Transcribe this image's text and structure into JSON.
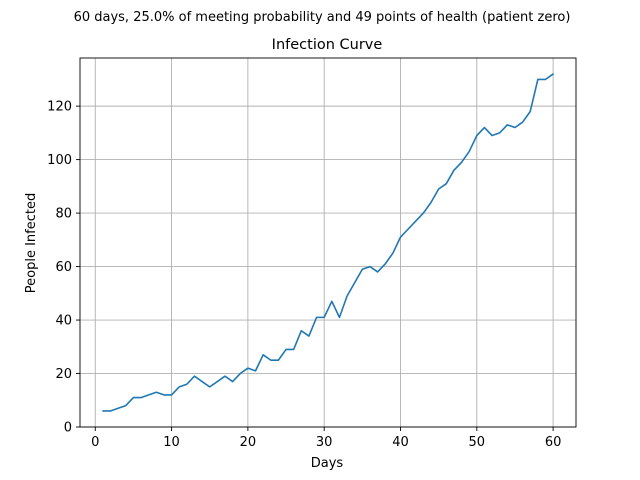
{
  "chart_data": {
    "type": "line",
    "suptitle": "60 days, 25.0% of meeting probability and 49 points of health (patient zero)",
    "title": "Infection Curve",
    "xlabel": "Days",
    "ylabel": "People Infected",
    "xlim": [
      -2,
      63
    ],
    "ylim": [
      0,
      138
    ],
    "xticks": [
      0,
      10,
      20,
      30,
      40,
      50,
      60
    ],
    "yticks": [
      0,
      20,
      40,
      60,
      80,
      100,
      120
    ],
    "grid": true,
    "line_color": "#1f77b4",
    "x": [
      1,
      2,
      3,
      4,
      5,
      6,
      7,
      8,
      9,
      10,
      11,
      12,
      13,
      14,
      15,
      16,
      17,
      18,
      19,
      20,
      21,
      22,
      23,
      24,
      25,
      26,
      27,
      28,
      29,
      30,
      31,
      32,
      33,
      34,
      35,
      36,
      37,
      38,
      39,
      40,
      41,
      42,
      43,
      44,
      45,
      46,
      47,
      48,
      49,
      50,
      51,
      52,
      53,
      54,
      55,
      56,
      57,
      58,
      59,
      60
    ],
    "values": [
      6,
      6,
      7,
      8,
      11,
      11,
      12,
      13,
      12,
      12,
      15,
      16,
      19,
      17,
      15,
      17,
      19,
      17,
      20,
      22,
      21,
      27,
      25,
      25,
      29,
      29,
      36,
      34,
      41,
      41,
      47,
      41,
      49,
      54,
      59,
      60,
      58,
      61,
      65,
      71,
      74,
      77,
      80,
      84,
      89,
      91,
      96,
      99,
      103,
      109,
      112,
      109,
      110,
      113,
      112,
      114,
      118,
      130,
      130,
      132
    ]
  }
}
